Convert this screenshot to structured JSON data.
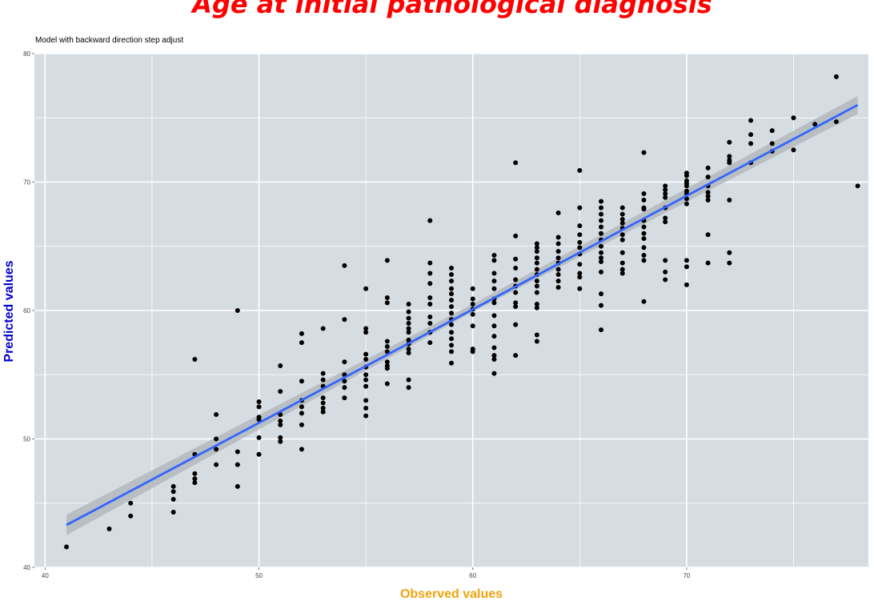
{
  "chart_data": {
    "type": "scatter",
    "title": "Age at initial pathological diagnosis",
    "subtitle": "Model with backward direction step adjust",
    "xlabel": "Observed values",
    "ylabel": "Predicted values",
    "xlim": [
      39.5,
      78.5
    ],
    "ylim": [
      40,
      80
    ],
    "x_ticks": [
      "40",
      "50",
      "60",
      "70"
    ],
    "y_ticks": [
      "40",
      "50",
      "60",
      "70",
      "80"
    ],
    "grid": true,
    "colors": {
      "panel": "#d5dde3",
      "grid": "#ffffff",
      "points": "#000000",
      "fit_line": "#3366ff",
      "confidence_band": "#b4b9bd"
    },
    "fit_line": {
      "x": [
        41,
        78
      ],
      "y": [
        43.3,
        76.0
      ],
      "band_x": [
        41,
        60,
        78
      ],
      "band_lower": [
        42.5,
        59.9,
        75.3
      ],
      "band_upper": [
        44.1,
        60.5,
        76.7
      ]
    },
    "points": [
      {
        "x": 41,
        "y": 41.6
      },
      {
        "x": 43,
        "y": 43.0
      },
      {
        "x": 44,
        "y": 45.0
      },
      {
        "x": 44,
        "y": 44.0
      },
      {
        "x": 46,
        "y": 46.3
      },
      {
        "x": 46,
        "y": 45.9
      },
      {
        "x": 46,
        "y": 45.3
      },
      {
        "x": 46,
        "y": 44.3
      },
      {
        "x": 47,
        "y": 56.2
      },
      {
        "x": 47,
        "y": 48.8
      },
      {
        "x": 47,
        "y": 47.3
      },
      {
        "x": 47,
        "y": 46.9
      },
      {
        "x": 47,
        "y": 46.6
      },
      {
        "x": 48,
        "y": 51.9
      },
      {
        "x": 48,
        "y": 50.0
      },
      {
        "x": 48,
        "y": 49.2
      },
      {
        "x": 48,
        "y": 48.0
      },
      {
        "x": 49,
        "y": 60.0
      },
      {
        "x": 49,
        "y": 49.0
      },
      {
        "x": 49,
        "y": 48.0
      },
      {
        "x": 49,
        "y": 46.3
      },
      {
        "x": 50,
        "y": 52.9
      },
      {
        "x": 50,
        "y": 52.5
      },
      {
        "x": 50,
        "y": 51.7
      },
      {
        "x": 50,
        "y": 51.5
      },
      {
        "x": 50,
        "y": 50.1
      },
      {
        "x": 50,
        "y": 48.8
      },
      {
        "x": 51,
        "y": 55.7
      },
      {
        "x": 51,
        "y": 53.7
      },
      {
        "x": 51,
        "y": 51.9
      },
      {
        "x": 51,
        "y": 51.4
      },
      {
        "x": 51,
        "y": 51.1
      },
      {
        "x": 51,
        "y": 50.1
      },
      {
        "x": 51,
        "y": 49.8
      },
      {
        "x": 52,
        "y": 58.2
      },
      {
        "x": 52,
        "y": 57.5
      },
      {
        "x": 52,
        "y": 54.5
      },
      {
        "x": 52,
        "y": 53.0
      },
      {
        "x": 52,
        "y": 52.5
      },
      {
        "x": 52,
        "y": 52.0
      },
      {
        "x": 52,
        "y": 51.1
      },
      {
        "x": 52,
        "y": 49.2
      },
      {
        "x": 53,
        "y": 58.6
      },
      {
        "x": 53,
        "y": 55.1
      },
      {
        "x": 53,
        "y": 54.6
      },
      {
        "x": 53,
        "y": 54.1
      },
      {
        "x": 53,
        "y": 53.2
      },
      {
        "x": 53,
        "y": 52.8
      },
      {
        "x": 53,
        "y": 52.4
      },
      {
        "x": 53,
        "y": 52.1
      },
      {
        "x": 54,
        "y": 63.5
      },
      {
        "x": 54,
        "y": 59.3
      },
      {
        "x": 54,
        "y": 56.0
      },
      {
        "x": 54,
        "y": 55.0
      },
      {
        "x": 54,
        "y": 54.5
      },
      {
        "x": 54,
        "y": 54.0
      },
      {
        "x": 54,
        "y": 53.2
      },
      {
        "x": 55,
        "y": 61.7
      },
      {
        "x": 55,
        "y": 58.6
      },
      {
        "x": 55,
        "y": 58.3
      },
      {
        "x": 55,
        "y": 56.6
      },
      {
        "x": 55,
        "y": 56.2
      },
      {
        "x": 55,
        "y": 55.6
      },
      {
        "x": 55,
        "y": 55.0
      },
      {
        "x": 55,
        "y": 54.6
      },
      {
        "x": 55,
        "y": 54.1
      },
      {
        "x": 55,
        "y": 53.0
      },
      {
        "x": 55,
        "y": 52.4
      },
      {
        "x": 55,
        "y": 51.8
      },
      {
        "x": 56,
        "y": 63.9
      },
      {
        "x": 56,
        "y": 61.0
      },
      {
        "x": 56,
        "y": 60.6
      },
      {
        "x": 56,
        "y": 57.6
      },
      {
        "x": 56,
        "y": 57.2
      },
      {
        "x": 56,
        "y": 56.8
      },
      {
        "x": 56,
        "y": 56.0
      },
      {
        "x": 56,
        "y": 55.7
      },
      {
        "x": 56,
        "y": 55.5
      },
      {
        "x": 56,
        "y": 54.3
      },
      {
        "x": 57,
        "y": 60.5
      },
      {
        "x": 57,
        "y": 59.9
      },
      {
        "x": 57,
        "y": 59.4
      },
      {
        "x": 57,
        "y": 59.0
      },
      {
        "x": 57,
        "y": 58.6
      },
      {
        "x": 57,
        "y": 58.3
      },
      {
        "x": 57,
        "y": 57.7
      },
      {
        "x": 57,
        "y": 57.4
      },
      {
        "x": 57,
        "y": 57.0
      },
      {
        "x": 57,
        "y": 56.7
      },
      {
        "x": 57,
        "y": 54.6
      },
      {
        "x": 57,
        "y": 54.0
      },
      {
        "x": 58,
        "y": 67.0
      },
      {
        "x": 58,
        "y": 63.7
      },
      {
        "x": 58,
        "y": 62.9
      },
      {
        "x": 58,
        "y": 62.1
      },
      {
        "x": 58,
        "y": 61.0
      },
      {
        "x": 58,
        "y": 60.5
      },
      {
        "x": 58,
        "y": 59.5
      },
      {
        "x": 58,
        "y": 59.0
      },
      {
        "x": 58,
        "y": 58.3
      },
      {
        "x": 58,
        "y": 57.5
      },
      {
        "x": 59,
        "y": 63.3
      },
      {
        "x": 59,
        "y": 62.8
      },
      {
        "x": 59,
        "y": 62.3
      },
      {
        "x": 59,
        "y": 61.7
      },
      {
        "x": 59,
        "y": 61.3
      },
      {
        "x": 59,
        "y": 60.8
      },
      {
        "x": 59,
        "y": 60.3
      },
      {
        "x": 59,
        "y": 59.8
      },
      {
        "x": 59,
        "y": 59.3
      },
      {
        "x": 59,
        "y": 58.9
      },
      {
        "x": 59,
        "y": 58.3
      },
      {
        "x": 59,
        "y": 57.8
      },
      {
        "x": 59,
        "y": 57.3
      },
      {
        "x": 59,
        "y": 56.8
      },
      {
        "x": 59,
        "y": 55.9
      },
      {
        "x": 60,
        "y": 61.7
      },
      {
        "x": 60,
        "y": 60.9
      },
      {
        "x": 60,
        "y": 60.5
      },
      {
        "x": 60,
        "y": 60.1
      },
      {
        "x": 60,
        "y": 59.7
      },
      {
        "x": 60,
        "y": 58.8
      },
      {
        "x": 60,
        "y": 57.0
      },
      {
        "x": 60,
        "y": 56.8
      },
      {
        "x": 61,
        "y": 64.3
      },
      {
        "x": 61,
        "y": 63.9
      },
      {
        "x": 61,
        "y": 62.9
      },
      {
        "x": 61,
        "y": 62.3
      },
      {
        "x": 61,
        "y": 61.7
      },
      {
        "x": 61,
        "y": 60.9
      },
      {
        "x": 61,
        "y": 60.6
      },
      {
        "x": 61,
        "y": 59.6
      },
      {
        "x": 61,
        "y": 58.8
      },
      {
        "x": 61,
        "y": 58.0
      },
      {
        "x": 61,
        "y": 57.1
      },
      {
        "x": 61,
        "y": 56.5
      },
      {
        "x": 61,
        "y": 56.2
      },
      {
        "x": 61,
        "y": 55.1
      },
      {
        "x": 62,
        "y": 71.5
      },
      {
        "x": 62,
        "y": 65.8
      },
      {
        "x": 62,
        "y": 64.0
      },
      {
        "x": 62,
        "y": 63.3
      },
      {
        "x": 62,
        "y": 62.4
      },
      {
        "x": 62,
        "y": 61.9
      },
      {
        "x": 62,
        "y": 61.4
      },
      {
        "x": 62,
        "y": 60.6
      },
      {
        "x": 62,
        "y": 60.3
      },
      {
        "x": 62,
        "y": 58.9
      },
      {
        "x": 62,
        "y": 56.5
      },
      {
        "x": 63,
        "y": 65.2
      },
      {
        "x": 63,
        "y": 64.9
      },
      {
        "x": 63,
        "y": 64.6
      },
      {
        "x": 63,
        "y": 64.1
      },
      {
        "x": 63,
        "y": 63.7
      },
      {
        "x": 63,
        "y": 63.2
      },
      {
        "x": 63,
        "y": 62.8
      },
      {
        "x": 63,
        "y": 62.3
      },
      {
        "x": 63,
        "y": 61.9
      },
      {
        "x": 63,
        "y": 61.4
      },
      {
        "x": 63,
        "y": 60.5
      },
      {
        "x": 63,
        "y": 60.2
      },
      {
        "x": 63,
        "y": 58.1
      },
      {
        "x": 63,
        "y": 57.6
      },
      {
        "x": 64,
        "y": 67.6
      },
      {
        "x": 64,
        "y": 65.7
      },
      {
        "x": 64,
        "y": 65.2
      },
      {
        "x": 64,
        "y": 64.6
      },
      {
        "x": 64,
        "y": 64.1
      },
      {
        "x": 64,
        "y": 63.7
      },
      {
        "x": 64,
        "y": 63.2
      },
      {
        "x": 64,
        "y": 62.8
      },
      {
        "x": 64,
        "y": 62.3
      },
      {
        "x": 64,
        "y": 61.8
      },
      {
        "x": 65,
        "y": 70.9
      },
      {
        "x": 65,
        "y": 68.0
      },
      {
        "x": 65,
        "y": 66.6
      },
      {
        "x": 65,
        "y": 65.9
      },
      {
        "x": 65,
        "y": 65.3
      },
      {
        "x": 65,
        "y": 64.9
      },
      {
        "x": 65,
        "y": 64.4
      },
      {
        "x": 65,
        "y": 63.6
      },
      {
        "x": 65,
        "y": 62.9
      },
      {
        "x": 65,
        "y": 62.6
      },
      {
        "x": 65,
        "y": 61.7
      },
      {
        "x": 66,
        "y": 68.5
      },
      {
        "x": 66,
        "y": 68.0
      },
      {
        "x": 66,
        "y": 67.5
      },
      {
        "x": 66,
        "y": 67.0
      },
      {
        "x": 66,
        "y": 66.5
      },
      {
        "x": 66,
        "y": 66.0
      },
      {
        "x": 66,
        "y": 65.5
      },
      {
        "x": 66,
        "y": 65.0
      },
      {
        "x": 66,
        "y": 64.5
      },
      {
        "x": 66,
        "y": 64.1
      },
      {
        "x": 66,
        "y": 63.8
      },
      {
        "x": 66,
        "y": 63.0
      },
      {
        "x": 66,
        "y": 61.3
      },
      {
        "x": 66,
        "y": 60.4
      },
      {
        "x": 66,
        "y": 58.5
      },
      {
        "x": 67,
        "y": 68.0
      },
      {
        "x": 67,
        "y": 67.5
      },
      {
        "x": 67,
        "y": 67.1
      },
      {
        "x": 67,
        "y": 66.8
      },
      {
        "x": 67,
        "y": 66.4
      },
      {
        "x": 67,
        "y": 65.9
      },
      {
        "x": 67,
        "y": 65.5
      },
      {
        "x": 67,
        "y": 64.5
      },
      {
        "x": 67,
        "y": 63.7
      },
      {
        "x": 67,
        "y": 63.2
      },
      {
        "x": 67,
        "y": 62.9
      },
      {
        "x": 68,
        "y": 72.3
      },
      {
        "x": 68,
        "y": 69.1
      },
      {
        "x": 68,
        "y": 68.6
      },
      {
        "x": 68,
        "y": 68.0
      },
      {
        "x": 68,
        "y": 67.9
      },
      {
        "x": 68,
        "y": 67.0
      },
      {
        "x": 68,
        "y": 66.5
      },
      {
        "x": 68,
        "y": 66.0
      },
      {
        "x": 68,
        "y": 65.6
      },
      {
        "x": 68,
        "y": 64.9
      },
      {
        "x": 68,
        "y": 64.3
      },
      {
        "x": 68,
        "y": 63.9
      },
      {
        "x": 68,
        "y": 60.7
      },
      {
        "x": 69,
        "y": 69.7
      },
      {
        "x": 69,
        "y": 69.4
      },
      {
        "x": 69,
        "y": 69.1
      },
      {
        "x": 69,
        "y": 68.8
      },
      {
        "x": 69,
        "y": 68.0
      },
      {
        "x": 69,
        "y": 67.2
      },
      {
        "x": 69,
        "y": 66.9
      },
      {
        "x": 69,
        "y": 63.9
      },
      {
        "x": 69,
        "y": 63.0
      },
      {
        "x": 69,
        "y": 62.4
      },
      {
        "x": 70,
        "y": 70.7
      },
      {
        "x": 70,
        "y": 70.5
      },
      {
        "x": 70,
        "y": 70.1
      },
      {
        "x": 70,
        "y": 69.9
      },
      {
        "x": 70,
        "y": 69.7
      },
      {
        "x": 70,
        "y": 69.3
      },
      {
        "x": 70,
        "y": 69.1
      },
      {
        "x": 70,
        "y": 68.7
      },
      {
        "x": 70,
        "y": 68.3
      },
      {
        "x": 70,
        "y": 63.9
      },
      {
        "x": 70,
        "y": 63.4
      },
      {
        "x": 70,
        "y": 62.0
      },
      {
        "x": 71,
        "y": 71.1
      },
      {
        "x": 71,
        "y": 70.4
      },
      {
        "x": 71,
        "y": 69.7
      },
      {
        "x": 71,
        "y": 69.2
      },
      {
        "x": 71,
        "y": 68.9
      },
      {
        "x": 71,
        "y": 68.6
      },
      {
        "x": 71,
        "y": 65.9
      },
      {
        "x": 71,
        "y": 63.7
      },
      {
        "x": 72,
        "y": 73.1
      },
      {
        "x": 72,
        "y": 72.0
      },
      {
        "x": 72,
        "y": 71.7
      },
      {
        "x": 72,
        "y": 71.5
      },
      {
        "x": 72,
        "y": 68.6
      },
      {
        "x": 72,
        "y": 64.5
      },
      {
        "x": 72,
        "y": 63.7
      },
      {
        "x": 73,
        "y": 74.8
      },
      {
        "x": 73,
        "y": 73.7
      },
      {
        "x": 73,
        "y": 73.0
      },
      {
        "x": 73,
        "y": 71.5
      },
      {
        "x": 74,
        "y": 74.0
      },
      {
        "x": 74,
        "y": 73.0
      },
      {
        "x": 74,
        "y": 72.4
      },
      {
        "x": 75,
        "y": 75.0
      },
      {
        "x": 75,
        "y": 72.5
      },
      {
        "x": 76,
        "y": 74.5
      },
      {
        "x": 77,
        "y": 78.2
      },
      {
        "x": 77,
        "y": 74.7
      },
      {
        "x": 78,
        "y": 69.7
      }
    ]
  }
}
